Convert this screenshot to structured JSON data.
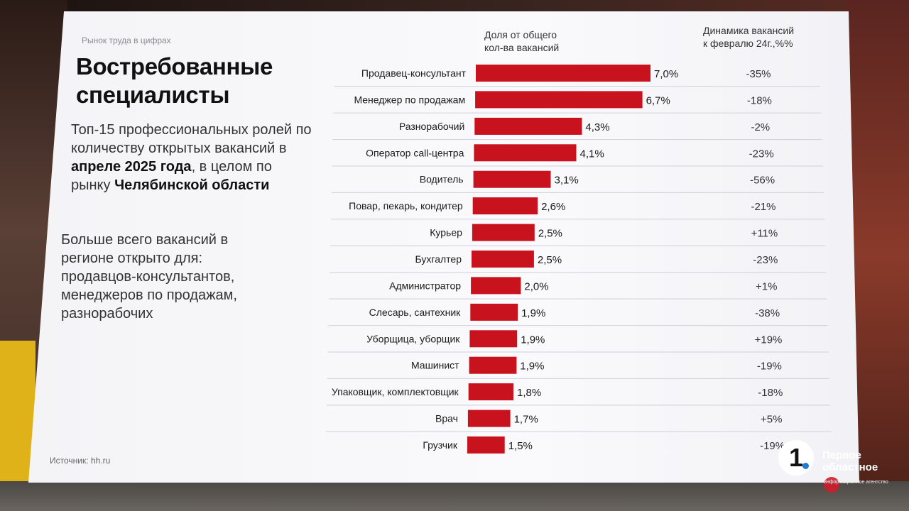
{
  "header": {
    "crumb": "Рынок труда в цифрах",
    "title": "Востребованные\nспециалисты"
  },
  "description": {
    "p1_a": "Топ-15 профессиональных ролей по количеству открытых вакансий в ",
    "p1_b": "апреле 2025 года",
    "p1_c": ", в целом по рынку ",
    "p1_d": "Челябинской области",
    "p2_lines": [
      "Больше всего вакансий в",
      "регионе открыто для:",
      "продавцов-консультантов,",
      "менеджеров по продажам,",
      "разнорабочих"
    ]
  },
  "source": "Источник: hh.ru",
  "logo": {
    "mark": "1",
    "name": "Первое\nобластное",
    "sub": "информационное агентство"
  },
  "colors": {
    "bar": "#c8121e",
    "divider": "#d0d0d6",
    "text": "#1a1a1a"
  },
  "chart_data": {
    "type": "bar",
    "orientation": "horizontal",
    "column_headers": {
      "share": "Доля от общего\nкол-ва вакансий",
      "dynamics": "Динамика вакансий\nк февралю 24г.,%%"
    },
    "categories": [
      "Продавец-консультант",
      "Менеджер по продажам",
      "Разнорабочий",
      "Оператор call-центра",
      "Водитель",
      "Повар, пекарь, кондитер",
      "Курьер",
      "Бухгалтер",
      "Администратор",
      "Слесарь, сантехник",
      "Уборщица, уборщик",
      "Машинист",
      "Упаковщик, комплектовщик",
      "Врач",
      "Грузчик"
    ],
    "values": [
      7.0,
      6.7,
      4.3,
      4.1,
      3.1,
      2.6,
      2.5,
      2.5,
      2.0,
      1.9,
      1.9,
      1.9,
      1.8,
      1.7,
      1.5
    ],
    "value_labels": [
      "7,0%",
      "6,7%",
      "4,3%",
      "4,1%",
      "3,1%",
      "2,6%",
      "2,5%",
      "2,5%",
      "2,0%",
      "1,9%",
      "1,9%",
      "1,9%",
      "1,8%",
      "1,7%",
      "1,5%"
    ],
    "dynamics": [
      "-35%",
      "-18%",
      "-2%",
      "-23%",
      "-56%",
      "-21%",
      "+11%",
      "-23%",
      "+1%",
      "-38%",
      "+19%",
      "-19%",
      "-18%",
      "+5%",
      "-19%"
    ],
    "unit": "%",
    "xlim": [
      0,
      7.0
    ]
  }
}
